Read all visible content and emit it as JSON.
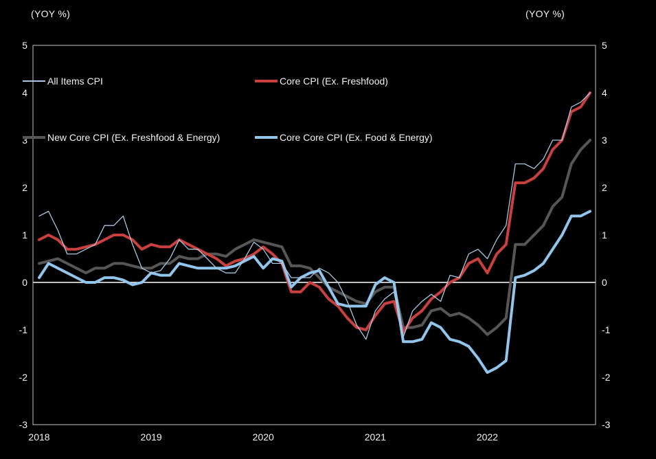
{
  "header": {
    "left_unit_label": "(YOY %)",
    "right_unit_label": "(YOY %)"
  },
  "colors": {
    "background": "#000000",
    "axis_border": "#c6c6c6",
    "zero_line": "#ffffff",
    "text": "#f2f2f2",
    "all_items": "#a8c8e4",
    "core": "#c9403f",
    "new_core": "#565656",
    "core_core": "#92c5ec"
  },
  "chart_data": {
    "type": "line",
    "title": "",
    "xlabel": "",
    "ylabel": "(YOY %)",
    "ylim": [
      -3,
      5
    ],
    "yticks": [
      5,
      4,
      3,
      2,
      1,
      0,
      -1,
      -2,
      -3
    ],
    "grid": false,
    "zero_line": true,
    "legend_position": "top-inside",
    "x_year_labels": [
      "2018",
      "2019",
      "2020",
      "2021",
      "2022"
    ],
    "x": [
      "2018-01",
      "2018-02",
      "2018-03",
      "2018-04",
      "2018-05",
      "2018-06",
      "2018-07",
      "2018-08",
      "2018-09",
      "2018-10",
      "2018-11",
      "2018-12",
      "2019-01",
      "2019-02",
      "2019-03",
      "2019-04",
      "2019-05",
      "2019-06",
      "2019-07",
      "2019-08",
      "2019-09",
      "2019-10",
      "2019-11",
      "2019-12",
      "2020-01",
      "2020-02",
      "2020-03",
      "2020-04",
      "2020-05",
      "2020-06",
      "2020-07",
      "2020-08",
      "2020-09",
      "2020-10",
      "2020-11",
      "2020-12",
      "2021-01",
      "2021-02",
      "2021-03",
      "2021-04",
      "2021-05",
      "2021-06",
      "2021-07",
      "2021-08",
      "2021-09",
      "2021-10",
      "2021-11",
      "2021-12",
      "2022-01",
      "2022-02",
      "2022-03",
      "2022-04",
      "2022-05",
      "2022-06",
      "2022-07",
      "2022-08",
      "2022-09",
      "2022-10",
      "2022-11",
      "2022-12"
    ],
    "series": [
      {
        "name": "All Items CPI",
        "color": "#a8c8e4",
        "thin": true,
        "values": [
          1.4,
          1.5,
          1.1,
          0.6,
          0.6,
          0.7,
          0.8,
          1.2,
          1.2,
          1.4,
          0.8,
          0.3,
          0.2,
          0.25,
          0.5,
          0.9,
          0.7,
          0.7,
          0.5,
          0.3,
          0.2,
          0.2,
          0.5,
          0.85,
          0.7,
          0.4,
          0.4,
          0.1,
          0.1,
          0.1,
          0.3,
          0.2,
          0.0,
          -0.4,
          -0.9,
          -1.2,
          -0.6,
          -0.35,
          -0.2,
          -1.15,
          -0.6,
          -0.4,
          -0.25,
          -0.4,
          0.15,
          0.1,
          0.6,
          0.7,
          0.5,
          0.9,
          1.2,
          2.5,
          2.5,
          2.4,
          2.6,
          3.0,
          3.0,
          3.7,
          3.8,
          4.0
        ]
      },
      {
        "name": "Core CPI (Ex. Freshfood)",
        "color": "#c9403f",
        "thin": false,
        "values": [
          0.9,
          1.0,
          0.9,
          0.7,
          0.7,
          0.75,
          0.8,
          0.9,
          1.0,
          1.0,
          0.9,
          0.7,
          0.8,
          0.75,
          0.75,
          0.9,
          0.8,
          0.7,
          0.6,
          0.5,
          0.35,
          0.45,
          0.5,
          0.6,
          0.75,
          0.6,
          0.4,
          -0.2,
          -0.2,
          0.0,
          -0.1,
          -0.35,
          -0.5,
          -0.75,
          -0.95,
          -1.0,
          -0.7,
          -0.45,
          -0.4,
          -1.05,
          -0.75,
          -0.6,
          -0.35,
          -0.2,
          0.0,
          0.1,
          0.4,
          0.5,
          0.2,
          0.6,
          0.8,
          2.1,
          2.1,
          2.2,
          2.4,
          2.8,
          3.0,
          3.6,
          3.7,
          4.0
        ]
      },
      {
        "name": "New Core CPI (Ex. Freshfood & Energy)",
        "color": "#565656",
        "thin": false,
        "values": [
          0.4,
          0.45,
          0.5,
          0.4,
          0.3,
          0.2,
          0.3,
          0.3,
          0.4,
          0.4,
          0.35,
          0.3,
          0.3,
          0.4,
          0.4,
          0.55,
          0.5,
          0.5,
          0.6,
          0.6,
          0.55,
          0.7,
          0.8,
          0.9,
          0.85,
          0.8,
          0.75,
          0.35,
          0.35,
          0.3,
          0.1,
          -0.1,
          -0.2,
          -0.3,
          -0.4,
          -0.45,
          -0.2,
          -0.1,
          -0.1,
          -0.95,
          -0.95,
          -0.9,
          -0.6,
          -0.55,
          -0.7,
          -0.65,
          -0.75,
          -0.9,
          -1.1,
          -0.95,
          -0.75,
          0.8,
          0.8,
          1.0,
          1.2,
          1.6,
          1.8,
          2.5,
          2.8,
          3.0
        ]
      },
      {
        "name": "Core Core CPI (Ex. Food & Energy)",
        "color": "#92c5ec",
        "thin": false,
        "values": [
          0.1,
          0.4,
          0.3,
          0.2,
          0.1,
          0.0,
          0.0,
          0.1,
          0.1,
          0.05,
          -0.05,
          0.0,
          0.2,
          0.15,
          0.15,
          0.4,
          0.35,
          0.3,
          0.3,
          0.3,
          0.3,
          0.35,
          0.45,
          0.55,
          0.3,
          0.5,
          0.45,
          -0.1,
          0.1,
          0.2,
          0.25,
          -0.1,
          -0.45,
          -0.5,
          -0.5,
          -0.5,
          -0.05,
          0.1,
          0.0,
          -1.25,
          -1.25,
          -1.2,
          -0.85,
          -0.95,
          -1.2,
          -1.25,
          -1.35,
          -1.6,
          -1.9,
          -1.8,
          -1.65,
          0.1,
          0.15,
          0.25,
          0.4,
          0.7,
          1.0,
          1.4,
          1.4,
          1.5
        ]
      }
    ]
  }
}
